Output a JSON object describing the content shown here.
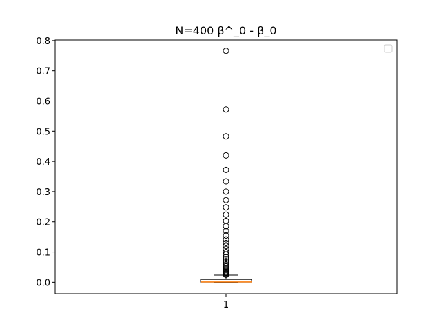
{
  "chart_data": {
    "type": "box",
    "title": "N=400 β^_0 - β_0",
    "xlabel": "",
    "ylabel": "",
    "categories": [
      "1"
    ],
    "ylim": [
      -0.038,
      0.802
    ],
    "yticks": [
      0.0,
      0.1,
      0.2,
      0.3,
      0.4,
      0.5,
      0.6,
      0.7,
      0.8
    ],
    "ytick_labels": [
      "0.0",
      "0.1",
      "0.2",
      "0.3",
      "0.4",
      "0.5",
      "0.6",
      "0.7",
      "0.8"
    ],
    "legend": {
      "placement": "top-right",
      "entries": []
    },
    "grid": false,
    "box": {
      "q1": 0.0005,
      "median": 0.001,
      "q3": 0.0095,
      "whisker_low": 0.0,
      "whisker_high": 0.0235,
      "outliers": [
        0.766,
        0.572,
        0.483,
        0.42,
        0.372,
        0.334,
        0.3,
        0.272,
        0.248,
        0.224,
        0.203,
        0.186,
        0.17,
        0.155,
        0.142,
        0.13,
        0.12,
        0.11,
        0.1,
        0.092,
        0.084,
        0.077,
        0.07,
        0.064,
        0.058,
        0.053,
        0.048,
        0.044,
        0.04,
        0.036,
        0.033,
        0.03,
        0.027,
        0.025
      ]
    },
    "colors": {
      "median": "#ff7f0e",
      "box": "#000000",
      "axes": "#000000"
    }
  }
}
